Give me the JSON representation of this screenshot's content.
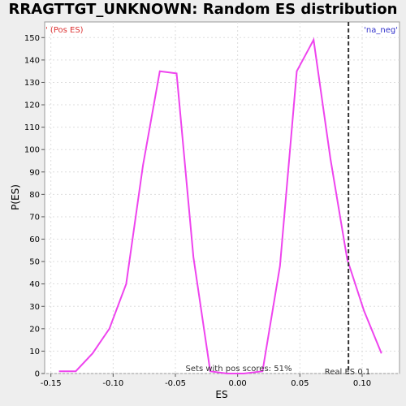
{
  "chart_data": {
    "type": "line",
    "title": "RRAGTTGT_UNKNOWN: Random ES distribution",
    "xlabel": "ES",
    "ylabel": "P(ES)",
    "xlim": [
      -0.155,
      0.13
    ],
    "ylim": [
      0,
      157
    ],
    "xticks": [
      -0.15,
      -0.1,
      -0.05,
      0.0,
      0.05,
      0.1
    ],
    "xtick_labels": [
      "-0.15",
      "-0.10",
      "-0.05",
      "0.00",
      "0.05",
      "0.10"
    ],
    "yticks": [
      0,
      10,
      20,
      30,
      40,
      50,
      60,
      70,
      80,
      90,
      100,
      110,
      120,
      130,
      140,
      150
    ],
    "grid": true,
    "series": [
      {
        "color": "#ee44ee",
        "x": [
          -0.1435,
          -0.13,
          -0.1165,
          -0.103,
          -0.0895,
          -0.076,
          -0.0625,
          -0.049,
          -0.0355,
          -0.022,
          -0.0085,
          0.005,
          0.02,
          0.034,
          0.0475,
          0.061,
          0.0745,
          0.088,
          0.1015,
          0.1155
        ],
        "y": [
          1,
          1,
          9,
          20,
          40,
          93,
          135,
          134,
          52,
          1,
          0,
          0,
          1,
          48,
          135,
          149,
          96,
          51,
          28,
          9
        ]
      }
    ],
    "vline": {
      "x": 0.089,
      "color": "#333333",
      "style": "dashed"
    },
    "annotations": {
      "pos_es": "' (Pos ES)",
      "na_neg": "'na_neg'",
      "sets_pos": "Sets with pos scores: 51%",
      "real_es": "Real ES 0.1"
    },
    "colors": {
      "pos": "#dd3333",
      "neg": "#3333cc",
      "line": "#ee44ee"
    }
  }
}
